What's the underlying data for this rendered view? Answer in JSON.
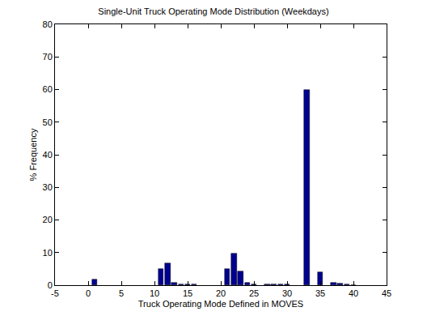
{
  "chart_data": {
    "type": "bar",
    "title": "Single-Unit Truck Operating Mode Distribution (Weekdays)",
    "x_label": "Truck Operating Mode Defined in MOVES",
    "y_label": "% Frequency",
    "x": [
      1,
      11,
      12,
      13,
      14,
      15,
      16,
      21,
      22,
      23,
      24,
      25,
      27,
      28,
      29,
      30,
      33,
      35,
      37,
      38,
      39,
      40
    ],
    "values": [
      1.8,
      5.0,
      6.6,
      0.8,
      0.2,
      0.3,
      0.2,
      5.0,
      9.7,
      4.3,
      0.8,
      0.3,
      0.2,
      0.2,
      0.2,
      0.3,
      60.0,
      4.0,
      0.8,
      0.5,
      0.3,
      0.1
    ],
    "color": "#000090",
    "xlim": [
      -5,
      45
    ],
    "xticks": [
      -5,
      0,
      5,
      10,
      15,
      20,
      25,
      30,
      35,
      40,
      45
    ],
    "ylim": [
      0,
      80
    ],
    "yticks": [
      0,
      10,
      20,
      30,
      40,
      50,
      60,
      70,
      80
    ],
    "grid": false
  }
}
